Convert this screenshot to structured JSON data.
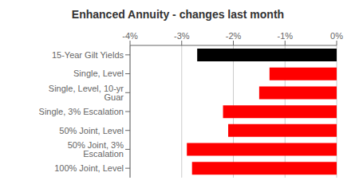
{
  "chart_data": {
    "type": "bar",
    "title": "Enhanced Annuity - changes last month",
    "orientation": "horizontal",
    "categories": [
      "15-Year Gilt Yields",
      "Single, Level",
      "Single, Level, 10-yr Guar",
      "Single, 3% Escalation",
      "50% Joint, Level",
      "50% Joint, 3% Escalation",
      "100% Joint, Level"
    ],
    "values": [
      -2.7,
      -1.3,
      -1.5,
      -2.2,
      -2.1,
      -2.9,
      -2.8
    ],
    "colors": [
      "#000000",
      "#ff0000",
      "#ff0000",
      "#ff0000",
      "#ff0000",
      "#ff0000",
      "#ff0000"
    ],
    "xlim": [
      -4,
      0
    ],
    "xticks": [
      {
        "value": -4,
        "label": "-4%"
      },
      {
        "value": -3,
        "label": "-3%"
      },
      {
        "value": -2,
        "label": "-2%"
      },
      {
        "value": -1,
        "label": "-1%"
      },
      {
        "value": 0,
        "label": "0%"
      }
    ],
    "grid": true
  }
}
